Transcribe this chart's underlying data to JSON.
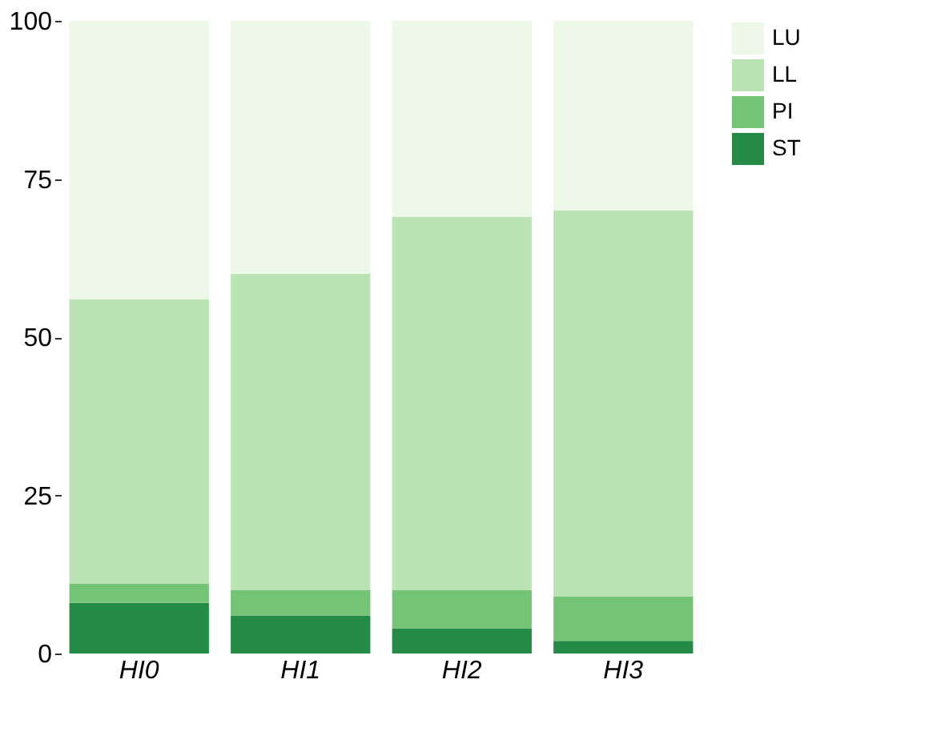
{
  "chart_data": {
    "type": "bar",
    "stacked": true,
    "categories": [
      "HI0",
      "HI1",
      "HI2",
      "HI3"
    ],
    "series": [
      {
        "name": "ST",
        "color": "#238b45",
        "values": [
          8,
          6,
          4,
          2
        ]
      },
      {
        "name": "PI",
        "color": "#74c476",
        "values": [
          3,
          4,
          6,
          7
        ]
      },
      {
        "name": "LL",
        "color": "#bae4b3",
        "values": [
          45,
          50,
          59,
          61
        ]
      },
      {
        "name": "LU",
        "color": "#edf8e9",
        "values": [
          44,
          40,
          31,
          30
        ]
      }
    ],
    "ylim": [
      0,
      100
    ],
    "yticks": [
      0,
      25,
      50,
      75,
      100
    ],
    "grid": false,
    "legend": "top right"
  }
}
